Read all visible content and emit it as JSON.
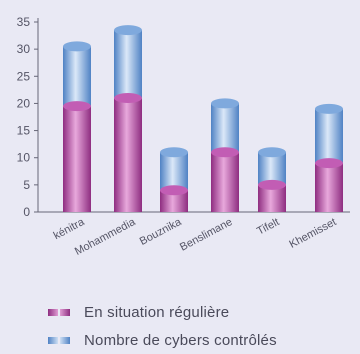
{
  "chart_data": {
    "type": "bar",
    "categories": [
      "kénitra",
      "Mohammedia",
      "Bouznika",
      "Benslimane",
      "Tifelt",
      "Khemisset"
    ],
    "series": [
      {
        "name": "En situation régulière",
        "values": [
          19.5,
          21,
          4,
          11,
          5,
          9
        ],
        "color": "#b04aa0"
      },
      {
        "name": "Nombre de cybers contrôlés",
        "values": [
          30.5,
          33.5,
          11,
          20,
          11,
          19
        ],
        "color": "#6f9fd8"
      }
    ],
    "ylim": [
      0,
      35
    ],
    "yticks": [
      0,
      5,
      10,
      15,
      20,
      25,
      30,
      35
    ],
    "legend_position": "bottom",
    "grid": false
  }
}
